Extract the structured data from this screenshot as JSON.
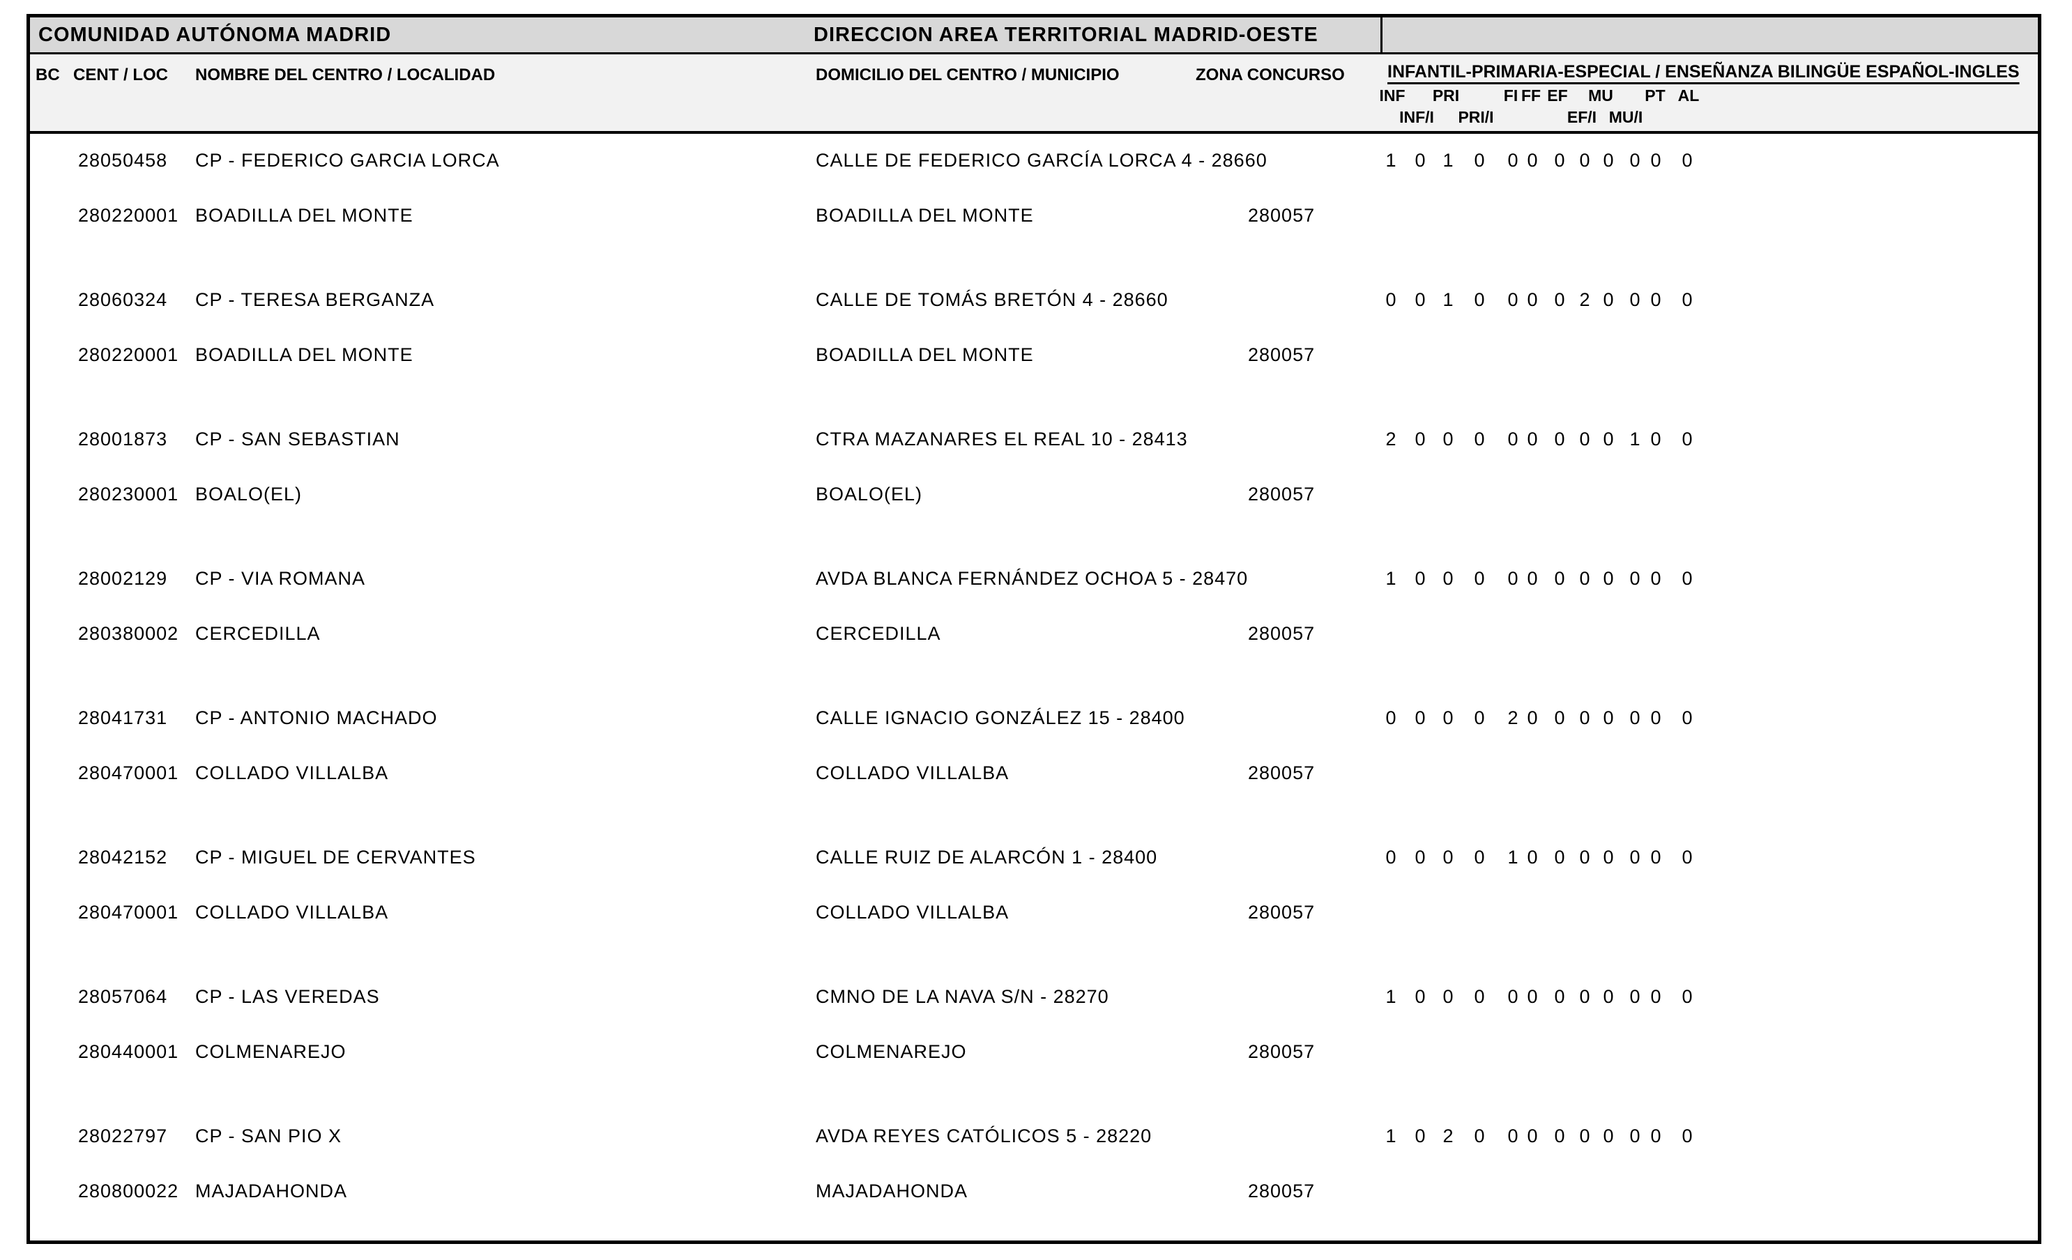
{
  "colors": {
    "title_band_bg": "#d8d8d8",
    "header_bg": "#f2f2f2",
    "border": "#000000",
    "text": "#000000"
  },
  "header": {
    "region_title": "COMUNIDAD AUTÓNOMA MADRID",
    "area_title": "DIRECCION AREA TERRITORIAL MADRID-OESTE"
  },
  "columns": {
    "bc": "BC",
    "cent_loc": "CENT / LOC",
    "nombre": "NOMBRE DEL CENTRO / LOCALIDAD",
    "domicilio": "DOMICILIO DEL CENTRO / MUNICIPIO",
    "zona": "ZONA CONCURSO",
    "group": "INFANTIL-PRIMARIA-ESPECIAL / ENSEÑANZA BILINGÜE ESPAÑOL-INGLES",
    "sub_row1": [
      "INF",
      "PRI",
      "FI",
      "FF",
      "EF",
      "MU",
      "PT",
      "AL"
    ],
    "sub_row2": [
      "INF/I",
      "PRI/I",
      "EF/I",
      "MU/I"
    ],
    "value_columns": [
      "INF",
      "INF/I",
      "PRI",
      "PRI/I",
      "FI",
      "FF",
      "EF",
      "EF/I",
      "MU",
      "MU/I",
      "PT",
      "AL"
    ]
  },
  "records": [
    {
      "cent": "28050458",
      "nombre": "CP - FEDERICO GARCIA LORCA",
      "domicilio": "CALLE DE FEDERICO GARCÍA LORCA 4 - 28660",
      "loc": "280220001",
      "localidad": "BOADILLA DEL MONTE",
      "municipio": "BOADILLA DEL MONTE",
      "zona": "280057",
      "values": [
        1,
        0,
        1,
        0,
        0,
        0,
        0,
        0,
        0,
        0,
        0,
        0
      ]
    },
    {
      "cent": "28060324",
      "nombre": "CP - TERESA BERGANZA",
      "domicilio": "CALLE DE TOMÁS BRETÓN 4 - 28660",
      "loc": "280220001",
      "localidad": "BOADILLA DEL MONTE",
      "municipio": "BOADILLA DEL MONTE",
      "zona": "280057",
      "values": [
        0,
        0,
        1,
        0,
        0,
        0,
        0,
        2,
        0,
        0,
        0,
        0
      ]
    },
    {
      "cent": "28001873",
      "nombre": "CP - SAN SEBASTIAN",
      "domicilio": "CTRA MAZANARES EL REAL 10 - 28413",
      "loc": "280230001",
      "localidad": "BOALO(EL)",
      "municipio": "BOALO(EL)",
      "zona": "280057",
      "values": [
        2,
        0,
        0,
        0,
        0,
        0,
        0,
        0,
        0,
        1,
        0,
        0
      ]
    },
    {
      "cent": "28002129",
      "nombre": "CP - VIA ROMANA",
      "domicilio": "AVDA BLANCA FERNÁNDEZ OCHOA 5 - 28470",
      "loc": "280380002",
      "localidad": "CERCEDILLA",
      "municipio": "CERCEDILLA",
      "zona": "280057",
      "values": [
        1,
        0,
        0,
        0,
        0,
        0,
        0,
        0,
        0,
        0,
        0,
        0
      ]
    },
    {
      "cent": "28041731",
      "nombre": "CP - ANTONIO MACHADO",
      "domicilio": "CALLE IGNACIO GONZÁLEZ 15 - 28400",
      "loc": "280470001",
      "localidad": "COLLADO VILLALBA",
      "municipio": "COLLADO VILLALBA",
      "zona": "280057",
      "values": [
        0,
        0,
        0,
        0,
        2,
        0,
        0,
        0,
        0,
        0,
        0,
        0
      ]
    },
    {
      "cent": "28042152",
      "nombre": "CP - MIGUEL DE CERVANTES",
      "domicilio": "CALLE RUIZ DE ALARCÓN 1 - 28400",
      "loc": "280470001",
      "localidad": "COLLADO VILLALBA",
      "municipio": "COLLADO VILLALBA",
      "zona": "280057",
      "values": [
        0,
        0,
        0,
        0,
        1,
        0,
        0,
        0,
        0,
        0,
        0,
        0
      ]
    },
    {
      "cent": "28057064",
      "nombre": "CP - LAS VEREDAS",
      "domicilio": "CMNO DE LA NAVA S/N - 28270",
      "loc": "280440001",
      "localidad": "COLMENAREJO",
      "municipio": "COLMENAREJO",
      "zona": "280057",
      "values": [
        1,
        0,
        0,
        0,
        0,
        0,
        0,
        0,
        0,
        0,
        0,
        0
      ]
    },
    {
      "cent": "28022797",
      "nombre": "CP - SAN PIO X",
      "domicilio": "AVDA REYES CATÓLICOS 5 - 28220",
      "loc": "280800022",
      "localidad": "MAJADAHONDA",
      "municipio": "MAJADAHONDA",
      "zona": "280057",
      "values": [
        1,
        0,
        2,
        0,
        0,
        0,
        0,
        0,
        0,
        0,
        0,
        0
      ]
    }
  ]
}
